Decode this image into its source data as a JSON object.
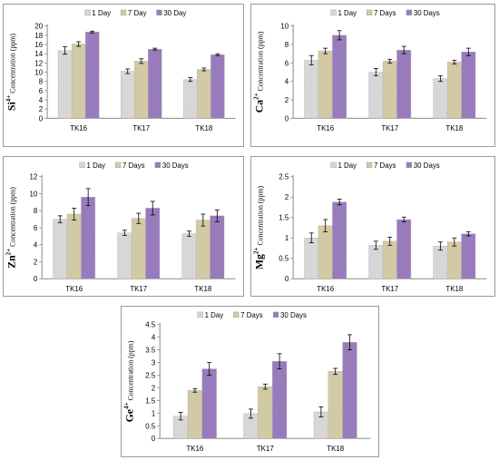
{
  "chart_data": [
    {
      "type": "bar",
      "ylabel_element": "Si",
      "ylabel_charge": "4+",
      "ylabel_text": " Concentration (ppm)",
      "ylim": [
        0,
        20
      ],
      "yticks": [
        "0",
        "2",
        "4",
        "6",
        "8",
        "10",
        "12",
        "14",
        "16",
        "18",
        "20"
      ],
      "categories": [
        "TK16",
        "TK17",
        "TK18"
      ],
      "series": [
        {
          "name": "1 Day",
          "values": [
            14.7,
            10.2,
            8.4
          ],
          "errors": [
            0.8,
            0.5,
            0.4
          ]
        },
        {
          "name": "7 Day",
          "values": [
            16.1,
            12.4,
            10.6
          ],
          "errors": [
            0.5,
            0.5,
            0.3
          ]
        },
        {
          "name": "30 Day",
          "values": [
            18.7,
            15.0,
            13.8
          ],
          "errors": [
            0.2,
            0.2,
            0.2
          ]
        }
      ]
    },
    {
      "type": "bar",
      "ylabel_element": "Ca",
      "ylabel_charge": "2+",
      "ylabel_text": " Concentration (ppm)",
      "ylim": [
        0,
        10
      ],
      "yticks": [
        "0",
        "2",
        "4",
        "6",
        "8",
        "10"
      ],
      "categories": [
        "TK16",
        "TK17",
        "TK18"
      ],
      "series": [
        {
          "name": "1 Day",
          "values": [
            6.3,
            5.0,
            4.3
          ],
          "errors": [
            0.5,
            0.4,
            0.3
          ]
        },
        {
          "name": "7 Days",
          "values": [
            7.3,
            6.2,
            6.1
          ],
          "errors": [
            0.3,
            0.2,
            0.2
          ]
        },
        {
          "name": "30 Days",
          "values": [
            9.0,
            7.4,
            7.2
          ],
          "errors": [
            0.5,
            0.4,
            0.4
          ]
        }
      ]
    },
    {
      "type": "bar",
      "ylabel_element": "Zn",
      "ylabel_charge": "2+",
      "ylabel_text": " Concentration (ppm)",
      "ylim": [
        0,
        12
      ],
      "yticks": [
        "0",
        "2",
        "4",
        "6",
        "8",
        "10",
        "12"
      ],
      "categories": [
        "TK16",
        "TK17",
        "TK18"
      ],
      "series": [
        {
          "name": "1 Day",
          "values": [
            7.0,
            5.4,
            5.3
          ],
          "errors": [
            0.4,
            0.3,
            0.3
          ]
        },
        {
          "name": "7 Days",
          "values": [
            7.6,
            7.1,
            6.9
          ],
          "errors": [
            0.7,
            0.6,
            0.7
          ]
        },
        {
          "name": "30 Days",
          "values": [
            9.6,
            8.3,
            7.4
          ],
          "errors": [
            1.0,
            0.8,
            0.7
          ]
        }
      ]
    },
    {
      "type": "bar",
      "ylabel_element": "Mg",
      "ylabel_charge": "2+",
      "ylabel_text": " Concentration (ppm)",
      "ylim": [
        0,
        2.5
      ],
      "yticks": [
        "0",
        "0.5",
        "1",
        "1.5",
        "2",
        "2.5"
      ],
      "categories": [
        "TK16",
        "TK17",
        "TK18"
      ],
      "series": [
        {
          "name": "1 Day",
          "values": [
            1.0,
            0.82,
            0.8
          ],
          "errors": [
            0.12,
            0.1,
            0.1
          ]
        },
        {
          "name": "7 Days",
          "values": [
            1.3,
            0.92,
            0.9
          ],
          "errors": [
            0.15,
            0.1,
            0.1
          ]
        },
        {
          "name": "30 Days",
          "values": [
            1.88,
            1.45,
            1.1
          ],
          "errors": [
            0.07,
            0.06,
            0.05
          ]
        }
      ]
    },
    {
      "type": "bar",
      "ylabel_element": "Ge",
      "ylabel_charge": "4+",
      "ylabel_text": " Concentration (ppm)",
      "ylim": [
        0,
        4.5
      ],
      "yticks": [
        "0",
        "0.5",
        "1",
        "1.5",
        "2",
        "2.5",
        "3",
        "3.5",
        "4",
        "4.5"
      ],
      "categories": [
        "TK16",
        "TK17",
        "TK18"
      ],
      "series": [
        {
          "name": "1 Day",
          "values": [
            0.88,
            0.98,
            1.05
          ],
          "errors": [
            0.15,
            0.18,
            0.2
          ]
        },
        {
          "name": "7 Days",
          "values": [
            1.9,
            2.05,
            2.65
          ],
          "errors": [
            0.07,
            0.1,
            0.12
          ]
        },
        {
          "name": "30 Days",
          "values": [
            2.75,
            3.05,
            3.8
          ],
          "errors": [
            0.25,
            0.3,
            0.3
          ]
        }
      ]
    }
  ],
  "colors": {
    "series_1": "#e8e8e8",
    "series_2": "#d2c9a5",
    "series_3": "#a78bc7",
    "axis": "#888888"
  }
}
